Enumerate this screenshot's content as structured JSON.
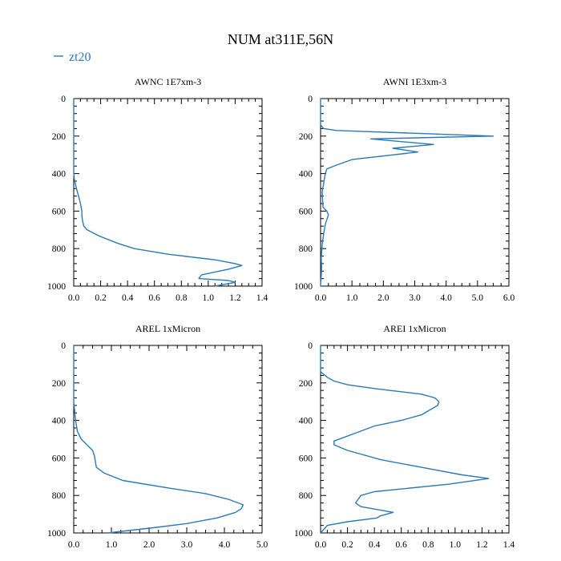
{
  "title": "NUM at311E,56N",
  "legend": {
    "label": "zt20",
    "color": "#2a7ab9"
  },
  "colors": {
    "line": "#2a7ab9",
    "axis": "#000000"
  },
  "chart_data": [
    {
      "type": "line",
      "title": "AWNC  1E7xm-3",
      "xlim": [
        0,
        1.4
      ],
      "ylim": [
        1000,
        0
      ],
      "x_ticks": [
        "0.0",
        "0.2",
        "0.4",
        "0.6",
        "0.8",
        "1.0",
        "1.2",
        "1.4"
      ],
      "x_tick_values": [
        0,
        0.2,
        0.4,
        0.6,
        0.8,
        1.0,
        1.2,
        1.4
      ],
      "y_ticks": [
        "0",
        "200",
        "400",
        "600",
        "800",
        "1000"
      ],
      "y_tick_values": [
        0,
        200,
        400,
        600,
        800,
        1000
      ],
      "series": [
        {
          "name": "zt20",
          "x": [
            0,
            0,
            0,
            0.005,
            0.02,
            0.04,
            0.05,
            0.06,
            0.06,
            0.065,
            0.075,
            0.1,
            0.18,
            0.32,
            0.45,
            0.7,
            1.05,
            1.2,
            1.25,
            1.15,
            0.95,
            0.93,
            1.15,
            1.2,
            1.05
          ],
          "y": [
            0,
            200,
            400,
            430,
            480,
            530,
            560,
            600,
            620,
            650,
            680,
            700,
            730,
            770,
            800,
            830,
            860,
            880,
            890,
            910,
            940,
            960,
            970,
            980,
            1000
          ]
        }
      ]
    },
    {
      "type": "line",
      "title": "AWNI  1E3xm-3",
      "xlim": [
        0,
        6.0
      ],
      "ylim": [
        1000,
        0
      ],
      "x_ticks": [
        "0.0",
        "1.0",
        "2.0",
        "3.0",
        "4.0",
        "5.0",
        "6.0"
      ],
      "x_tick_values": [
        0,
        1,
        2,
        3,
        4,
        5,
        6
      ],
      "y_ticks": [
        "0",
        "200",
        "400",
        "600",
        "800",
        "1000"
      ],
      "y_tick_values": [
        0,
        200,
        400,
        600,
        800,
        1000
      ],
      "series": [
        {
          "name": "zt20",
          "x": [
            0,
            0,
            0.1,
            0.5,
            5.5,
            1.6,
            3.6,
            2.3,
            3.1,
            1.0,
            0.5,
            0.2,
            0.15,
            0.1,
            0.05,
            0.08,
            0.2,
            0.25,
            0.15,
            0.1,
            0.05,
            0.02,
            0.03,
            0.02,
            0,
            0
          ],
          "y": [
            0,
            140,
            160,
            170,
            200,
            215,
            245,
            265,
            285,
            325,
            355,
            375,
            400,
            450,
            500,
            580,
            600,
            620,
            670,
            720,
            780,
            850,
            900,
            950,
            990,
            1000
          ]
        }
      ]
    },
    {
      "type": "line",
      "title": "AREL  1xMicron",
      "xlim": [
        0,
        5.0
      ],
      "ylim": [
        1000,
        0
      ],
      "x_ticks": [
        "0.0",
        "1.0",
        "2.0",
        "3.0",
        "4.0",
        "5.0"
      ],
      "x_tick_values": [
        0,
        1,
        2,
        3,
        4,
        5
      ],
      "y_ticks": [
        "0",
        "200",
        "400",
        "600",
        "800",
        "1000"
      ],
      "y_tick_values": [
        0,
        200,
        400,
        600,
        800,
        1000
      ],
      "series": [
        {
          "name": "zt20",
          "x": [
            0,
            0,
            0.05,
            0.1,
            0.2,
            0.5,
            0.55,
            0.6,
            0.8,
            1.3,
            2.5,
            3.5,
            4.1,
            4.5,
            4.45,
            4.3,
            3.8,
            3.0,
            2.2,
            0.9
          ],
          "y": [
            0,
            300,
            400,
            460,
            500,
            560,
            590,
            650,
            680,
            720,
            760,
            790,
            820,
            850,
            870,
            890,
            920,
            950,
            970,
            1000
          ]
        }
      ]
    },
    {
      "type": "line",
      "title": "AREI  1xMicron",
      "xlim": [
        0,
        1.4
      ],
      "ylim": [
        1000,
        0
      ],
      "x_ticks": [
        "0.0",
        "0.2",
        "0.4",
        "0.6",
        "0.8",
        "1.0",
        "1.2",
        "1.4"
      ],
      "x_tick_values": [
        0,
        0.2,
        0.4,
        0.6,
        0.8,
        1.0,
        1.2,
        1.4
      ],
      "y_ticks": [
        "0",
        "200",
        "400",
        "600",
        "800",
        "1000"
      ],
      "y_tick_values": [
        0,
        200,
        400,
        600,
        800,
        1000
      ],
      "series": [
        {
          "name": "zt20",
          "x": [
            0,
            0,
            0.05,
            0.1,
            0.2,
            0.4,
            0.75,
            0.85,
            0.88,
            0.87,
            0.75,
            0.6,
            0.4,
            0.25,
            0.1,
            0.1,
            0.2,
            0.45,
            0.75,
            1.05,
            1.25,
            0.95,
            0.4,
            0.3,
            0.26,
            0.3,
            0.54,
            0.44,
            0.42,
            0.2,
            0.05,
            0
          ],
          "y": [
            0,
            140,
            170,
            190,
            210,
            230,
            260,
            280,
            300,
            320,
            370,
            400,
            430,
            470,
            510,
            530,
            560,
            610,
            650,
            690,
            710,
            740,
            780,
            800,
            840,
            860,
            890,
            910,
            920,
            940,
            960,
            1000
          ]
        }
      ]
    }
  ]
}
